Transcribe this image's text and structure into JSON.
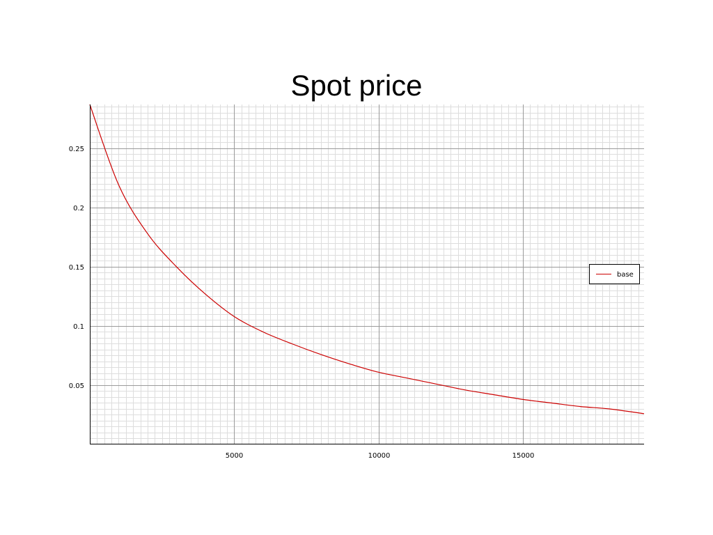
{
  "chart_data": {
    "type": "line",
    "title": "Spot price",
    "xlabel": "",
    "ylabel": "",
    "xlim": [
      0,
      19200
    ],
    "ylim": [
      0,
      0.287
    ],
    "x_ticks": [
      5000,
      10000,
      15000
    ],
    "x_tick_labels": [
      "5000",
      "10000",
      "15000"
    ],
    "y_ticks": [
      0.05,
      0.1,
      0.15,
      0.2,
      0.25
    ],
    "y_tick_labels": [
      "0.05",
      "0.1",
      "0.15",
      "0.2",
      "0.25"
    ],
    "grid": true,
    "minor_grid": true,
    "legend_position": "right",
    "colors": {
      "series": "#cc0000",
      "major_grid": "#9a9a9a",
      "minor_grid": "#dddddd"
    },
    "series": [
      {
        "name": "base",
        "x": [
          0,
          1000,
          2000,
          3000,
          4000,
          5000,
          6000,
          7000,
          8000,
          9000,
          10000,
          11000,
          12000,
          13000,
          14000,
          15000,
          16000,
          17000,
          18000,
          19200
        ],
        "values": [
          0.287,
          0.219,
          0.178,
          0.15,
          0.127,
          0.108,
          0.095,
          0.085,
          0.076,
          0.068,
          0.061,
          0.056,
          0.051,
          0.046,
          0.042,
          0.038,
          0.035,
          0.032,
          0.03,
          0.026
        ]
      }
    ]
  }
}
